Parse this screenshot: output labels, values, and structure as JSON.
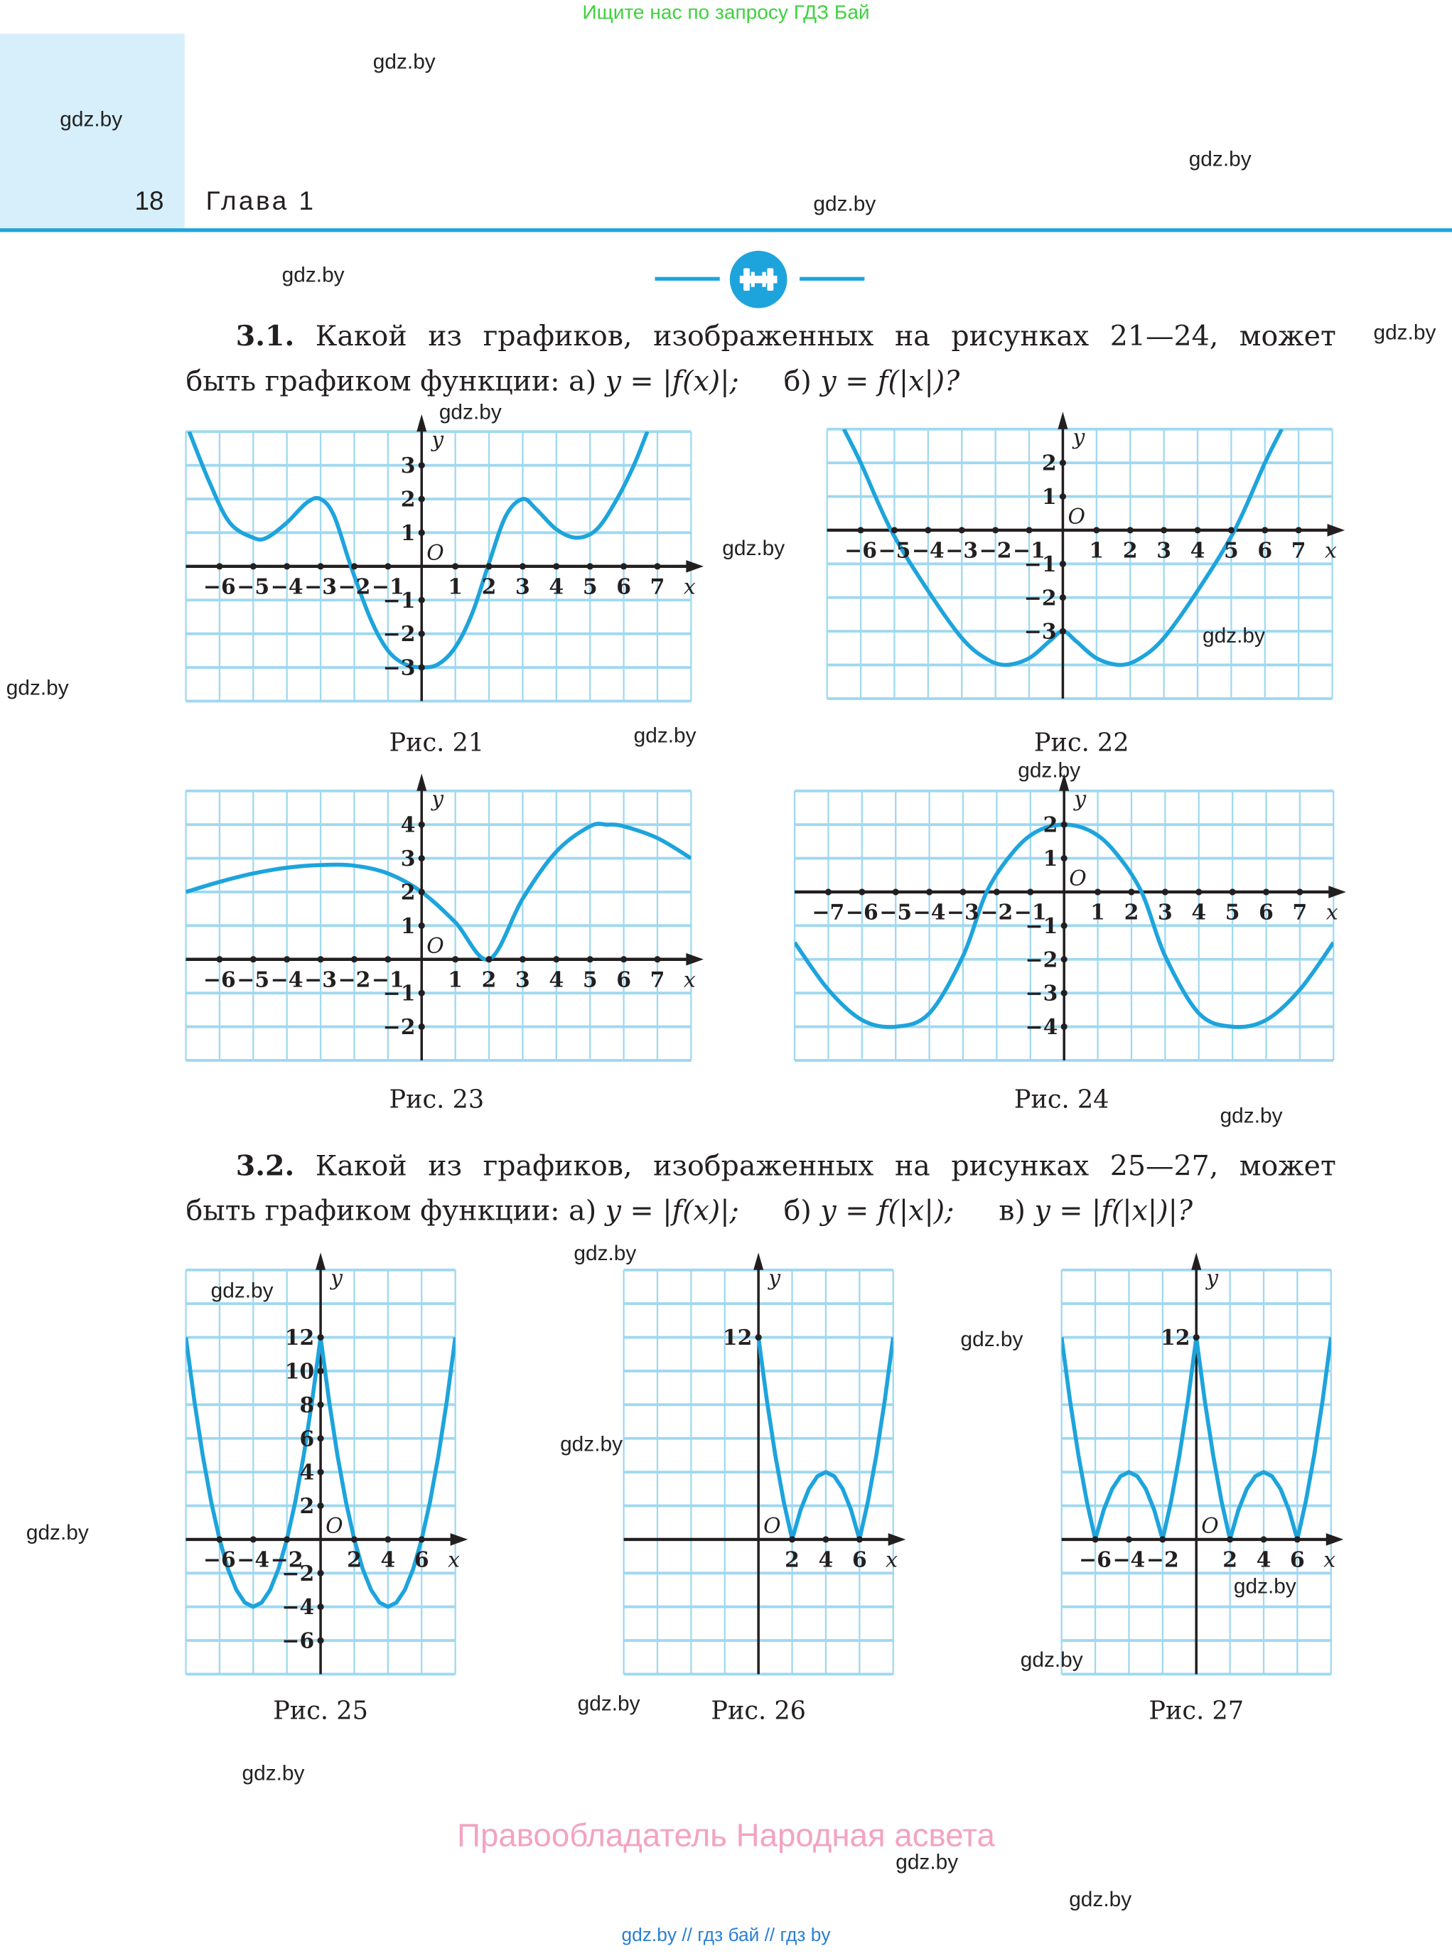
{
  "top_banner": "Ищите нас по запросу ГДЗ Бай",
  "header": {
    "page_number": "18",
    "chapter": "Глава 1"
  },
  "watermark": "gdz.by",
  "colors": {
    "accent": "#1ea4dc",
    "curve": "#1ea4dc",
    "grid": "#9fd8f0",
    "banner": "#3ed23e",
    "owner": "#f3a3c1",
    "header_bg": "#d7effb"
  },
  "icon": "dumbbell-icon",
  "task1": {
    "number": "3.1.",
    "line1": "Какой из графиков, изображенных на рисунках 21—24, может",
    "line2_prefix": "быть графиком функции: а)",
    "formula_a": "y = |f(x)|;",
    "label_b": "б)",
    "formula_b": "y = f(|x|)?"
  },
  "task2": {
    "number": "3.2.",
    "line1": "Какой из графиков, изображенных на рисунках 25—27, может",
    "line2_prefix": "быть графиком функции: а)",
    "formula_a": "y = |f(x)|;",
    "label_b": "б)",
    "formula_b": "y = f(|x|);",
    "label_c": "в)",
    "formula_c": "y = |f(|x|)|?"
  },
  "figures": [
    {
      "caption": "Рис. 21",
      "xlim": [
        -7,
        8
      ],
      "ylim": [
        -4,
        4
      ],
      "grid_step": 1,
      "origin_label": "O",
      "x_axis_label": "x",
      "y_axis_label": "y",
      "x_ticks": [
        -6,
        -5,
        -4,
        -3,
        -2,
        -1,
        1,
        2,
        3,
        4,
        5,
        6,
        7
      ],
      "y_ticks": [
        3,
        2,
        1,
        -1,
        -2,
        -3
      ],
      "smooth": true,
      "points": [
        [
          -6.9,
          4
        ],
        [
          -6.3,
          2.5
        ],
        [
          -5.7,
          1.3
        ],
        [
          -5,
          0.85
        ],
        [
          -4.6,
          0.85
        ],
        [
          -4,
          1.3
        ],
        [
          -3.4,
          1.9
        ],
        [
          -3,
          2
        ],
        [
          -2.6,
          1.5
        ],
        [
          -2.1,
          0
        ],
        [
          -1.5,
          -1.6
        ],
        [
          -1,
          -2.5
        ],
        [
          -0.5,
          -2.9
        ],
        [
          0,
          -3
        ],
        [
          0.5,
          -2.9
        ],
        [
          1,
          -2.4
        ],
        [
          1.5,
          -1.4
        ],
        [
          2,
          0.1
        ],
        [
          2.5,
          1.5
        ],
        [
          3,
          2
        ],
        [
          3.4,
          1.7
        ],
        [
          4,
          1.1
        ],
        [
          4.6,
          0.85
        ],
        [
          5.2,
          1.1
        ],
        [
          5.8,
          2.0
        ],
        [
          6.3,
          3.0
        ],
        [
          6.7,
          4
        ]
      ]
    },
    {
      "caption": "Рис. 22",
      "xlim": [
        -7,
        8
      ],
      "ylim": [
        -5,
        3
      ],
      "grid_step": 1,
      "origin_label": "O",
      "x_axis_label": "x",
      "y_axis_label": "y",
      "x_ticks": [
        -6,
        -5,
        -4,
        -3,
        -2,
        -1,
        1,
        2,
        3,
        4,
        5,
        6,
        7
      ],
      "y_ticks": [
        2,
        1,
        -1,
        -2,
        -3
      ],
      "smooth": true,
      "points": [
        [
          -6.5,
          3
        ],
        [
          -6,
          2
        ],
        [
          -5.1,
          0
        ],
        [
          -4,
          -1.8
        ],
        [
          -3,
          -3.2
        ],
        [
          -2.3,
          -3.8
        ],
        [
          -1.7,
          -4
        ],
        [
          -1,
          -3.8
        ],
        [
          -0.4,
          -3.3
        ],
        [
          0,
          -3
        ],
        [
          0.4,
          -3.3
        ],
        [
          1,
          -3.8
        ],
        [
          1.7,
          -4
        ],
        [
          2.3,
          -3.8
        ],
        [
          3,
          -3.2
        ],
        [
          4,
          -1.8
        ],
        [
          5.1,
          0
        ],
        [
          6,
          2
        ],
        [
          6.5,
          3
        ]
      ]
    },
    {
      "caption": "Рис. 23",
      "xlim": [
        -7,
        8
      ],
      "ylim": [
        -3,
        5
      ],
      "grid_step": 1,
      "origin_label": "O",
      "x_axis_label": "x",
      "y_axis_label": "y",
      "x_ticks": [
        -6,
        -5,
        -4,
        -3,
        -2,
        -1,
        1,
        2,
        3,
        4,
        5,
        6,
        7
      ],
      "y_ticks": [
        4,
        3,
        2,
        1,
        -1,
        -2
      ],
      "smooth": true,
      "points": [
        [
          -7,
          2
        ],
        [
          -6,
          2.3
        ],
        [
          -5,
          2.55
        ],
        [
          -4,
          2.72
        ],
        [
          -3,
          2.8
        ],
        [
          -2,
          2.78
        ],
        [
          -1,
          2.55
        ],
        [
          0,
          2.0
        ],
        [
          1,
          1.1
        ],
        [
          2,
          0
        ],
        [
          3,
          1.8
        ],
        [
          4,
          3.2
        ],
        [
          5,
          3.95
        ],
        [
          5.5,
          4
        ],
        [
          6,
          3.95
        ],
        [
          7,
          3.6
        ],
        [
          8,
          3
        ]
      ]
    },
    {
      "caption": "Рис. 24",
      "xlim": [
        -8,
        8
      ],
      "ylim": [
        -5,
        3
      ],
      "grid_step": 1,
      "origin_label": "O",
      "x_axis_label": "x",
      "y_axis_label": "y",
      "x_ticks": [
        -7,
        -6,
        -5,
        -4,
        -3,
        -2,
        -1,
        1,
        2,
        3,
        4,
        5,
        6,
        7
      ],
      "y_ticks": [
        2,
        1,
        -1,
        -2,
        -3,
        -4
      ],
      "smooth": true,
      "points": [
        [
          -8,
          -1.5
        ],
        [
          -7,
          -2.9
        ],
        [
          -6,
          -3.8
        ],
        [
          -5,
          -4
        ],
        [
          -4,
          -3.6
        ],
        [
          -3,
          -1.9
        ],
        [
          -2.3,
          0
        ],
        [
          -1.5,
          1.2
        ],
        [
          -0.8,
          1.8
        ],
        [
          0,
          2
        ],
        [
          0.8,
          1.8
        ],
        [
          1.5,
          1.2
        ],
        [
          2.3,
          0
        ],
        [
          3,
          -1.9
        ],
        [
          4,
          -3.6
        ],
        [
          5,
          -4
        ],
        [
          6,
          -3.8
        ],
        [
          7,
          -2.9
        ],
        [
          8,
          -1.5
        ]
      ]
    },
    {
      "caption": "Рис. 25",
      "xlim": [
        -8,
        8
      ],
      "ylim": [
        -8,
        16
      ],
      "grid_step": 2,
      "origin_label": "O",
      "x_axis_label": "x",
      "y_axis_label": "y",
      "x_ticks": [
        -6,
        -4,
        -2,
        2,
        4,
        6
      ],
      "y_ticks": [
        12,
        10,
        8,
        6,
        4,
        2,
        -2,
        -4,
        -6
      ],
      "smooth": false,
      "points": [
        [
          -8,
          12
        ],
        [
          -7.5,
          8.25
        ],
        [
          -7,
          5
        ],
        [
          -6.5,
          2.25
        ],
        [
          -6,
          0
        ],
        [
          -5.5,
          -1.75
        ],
        [
          -5,
          -3
        ],
        [
          -4.5,
          -3.75
        ],
        [
          -4,
          -4
        ],
        [
          -3.5,
          -3.75
        ],
        [
          -3,
          -3
        ],
        [
          -2.5,
          -1.75
        ],
        [
          -2,
          0
        ],
        [
          -1.5,
          2.25
        ],
        [
          -1,
          5
        ],
        [
          -0.5,
          8.25
        ],
        [
          0,
          12
        ],
        [
          0.5,
          8.25
        ],
        [
          1,
          5
        ],
        [
          1.5,
          2.25
        ],
        [
          2,
          0
        ],
        [
          2.5,
          -1.75
        ],
        [
          3,
          -3
        ],
        [
          3.5,
          -3.75
        ],
        [
          4,
          -4
        ],
        [
          4.5,
          -3.75
        ],
        [
          5,
          -3
        ],
        [
          5.5,
          -1.75
        ],
        [
          6,
          0
        ],
        [
          6.5,
          2.25
        ],
        [
          7,
          5
        ],
        [
          7.5,
          8.25
        ],
        [
          8,
          12
        ]
      ]
    },
    {
      "caption": "Рис. 26",
      "xlim": [
        -8,
        8
      ],
      "ylim": [
        -8,
        16
      ],
      "grid_step": 2,
      "origin_label": "O",
      "x_axis_label": "x",
      "y_axis_label": "y",
      "x_ticks": [
        2,
        4,
        6
      ],
      "y_ticks": [
        12
      ],
      "smooth": false,
      "points": [
        [
          0,
          12
        ],
        [
          0.5,
          8.25
        ],
        [
          1,
          5
        ],
        [
          1.5,
          2.25
        ],
        [
          2,
          0
        ],
        [
          2.5,
          1.75
        ],
        [
          3,
          3
        ],
        [
          3.5,
          3.75
        ],
        [
          4,
          4
        ],
        [
          4.5,
          3.75
        ],
        [
          5,
          3
        ],
        [
          5.5,
          1.75
        ],
        [
          6,
          0
        ],
        [
          6.5,
          2.25
        ],
        [
          7,
          5
        ],
        [
          7.5,
          8.25
        ],
        [
          8,
          12
        ]
      ]
    },
    {
      "caption": "Рис. 27",
      "xlim": [
        -8,
        8
      ],
      "ylim": [
        -8,
        16
      ],
      "grid_step": 2,
      "origin_label": "O",
      "x_axis_label": "x",
      "y_axis_label": "y",
      "x_ticks": [
        -6,
        -4,
        -2,
        2,
        4,
        6
      ],
      "y_ticks": [
        12
      ],
      "smooth": false,
      "points": [
        [
          -8,
          12
        ],
        [
          -7.5,
          8.25
        ],
        [
          -7,
          5
        ],
        [
          -6.5,
          2.25
        ],
        [
          -6,
          0
        ],
        [
          -5.5,
          1.75
        ],
        [
          -5,
          3
        ],
        [
          -4.5,
          3.75
        ],
        [
          -4,
          4
        ],
        [
          -3.5,
          3.75
        ],
        [
          -3,
          3
        ],
        [
          -2.5,
          1.75
        ],
        [
          -2,
          0
        ],
        [
          -1.5,
          2.25
        ],
        [
          -1,
          5
        ],
        [
          -0.5,
          8.25
        ],
        [
          0,
          12
        ],
        [
          0.5,
          8.25
        ],
        [
          1,
          5
        ],
        [
          1.5,
          2.25
        ],
        [
          2,
          0
        ],
        [
          2.5,
          1.75
        ],
        [
          3,
          3
        ],
        [
          3.5,
          3.75
        ],
        [
          4,
          4
        ],
        [
          4.5,
          3.75
        ],
        [
          5,
          3
        ],
        [
          5.5,
          1.75
        ],
        [
          6,
          0
        ],
        [
          6.5,
          2.25
        ],
        [
          7,
          5
        ],
        [
          7.5,
          8.25
        ],
        [
          8,
          12
        ]
      ]
    }
  ],
  "footer": {
    "owner": "Правообладатель Народная асвета",
    "links": "gdz.by  //  гдз бай  //  гдз by"
  }
}
